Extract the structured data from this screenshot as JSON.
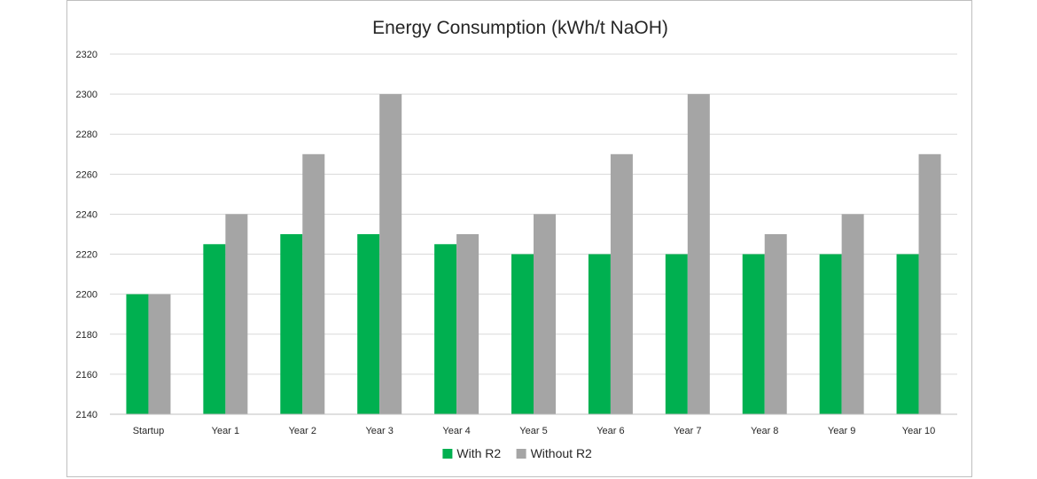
{
  "chart_data": {
    "type": "bar",
    "title": "Energy Consumption (kWh/t NaOH)",
    "xlabel": "",
    "ylabel": "",
    "ylim": [
      2140,
      2320
    ],
    "y_ticks": [
      2140,
      2160,
      2180,
      2200,
      2220,
      2240,
      2260,
      2280,
      2300,
      2320
    ],
    "grid": true,
    "legend_position": "bottom",
    "categories": [
      "Startup",
      "Year 1",
      "Year 2",
      "Year 3",
      "Year 4",
      "Year 5",
      "Year 6",
      "Year 7",
      "Year 8",
      "Year 9",
      "Year 10"
    ],
    "series": [
      {
        "name": "With R2",
        "color": "#00b050",
        "values": [
          2200,
          2225,
          2230,
          2230,
          2225,
          2220,
          2220,
          2220,
          2220,
          2220,
          2220
        ]
      },
      {
        "name": "Without R2",
        "color": "#a5a5a5",
        "values": [
          2200,
          2240,
          2270,
          2300,
          2230,
          2240,
          2270,
          2300,
          2230,
          2240,
          2270
        ]
      }
    ]
  }
}
